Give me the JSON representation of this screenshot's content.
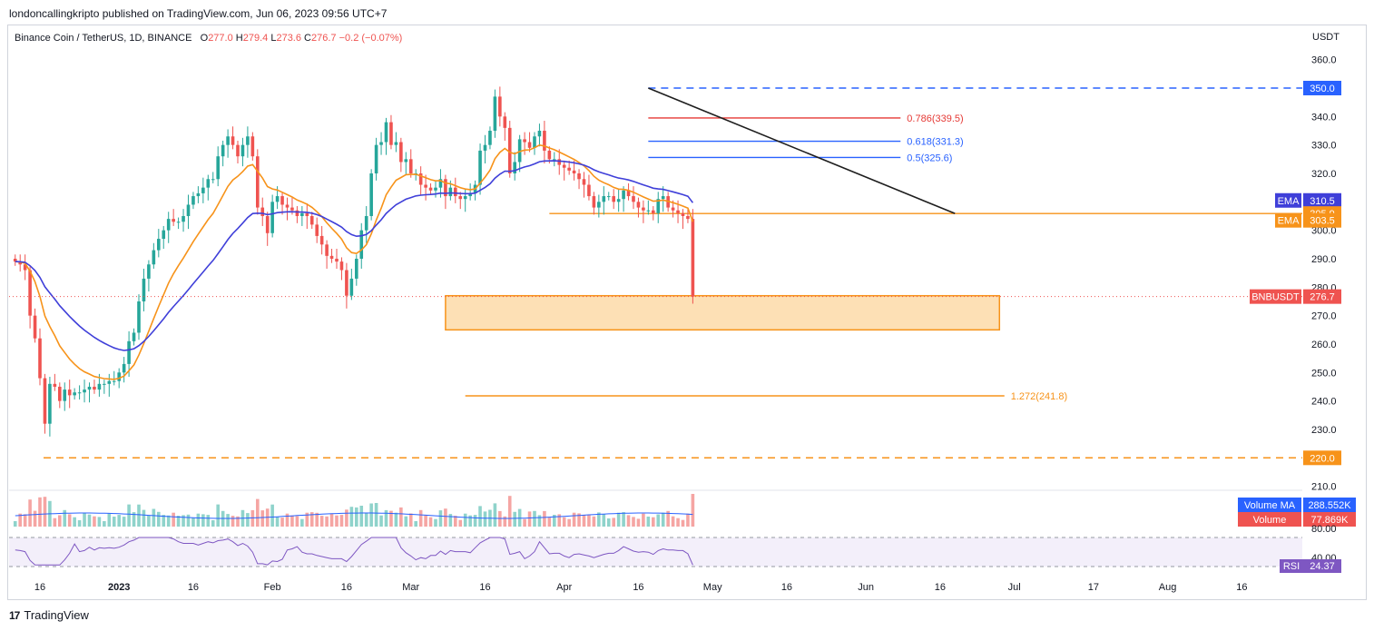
{
  "header": {
    "publisher": "londoncallingkripto published on TradingView.com, Jun 06, 2023 09:56 UTC+7"
  },
  "legend": {
    "symbol": "Binance Coin / TetherUS, 1D, BINANCE",
    "o_label": "O",
    "o_value": "277.0",
    "h_label": "H",
    "h_value": "279.4",
    "l_label": "L",
    "l_value": "273.6",
    "c_label": "C",
    "c_value": "276.7",
    "change": "−0.2 (−0.07%)"
  },
  "axis": {
    "currency": "USDT"
  },
  "footer": {
    "brand": "TradingView",
    "logo": "17"
  },
  "colors": {
    "up": "#26a69a",
    "down": "#ef5350",
    "ema_fast": "#f7931a",
    "ema_slow": "#3f3fd9",
    "trendline": "#1e1e1e",
    "zone_fill": "#fde0b5",
    "zone_border": "#f7931a",
    "level_blue": "#2962ff",
    "level_red": "#e53935"
  },
  "chart_data": {
    "type": "candlestick",
    "title": "Binance Coin / TetherUS, 1D, BINANCE",
    "ylabel": "USDT",
    "ylim": [
      206,
      366
    ],
    "y_ticks": [
      "360.0",
      "350.0",
      "340.0",
      "330.0",
      "320.0",
      "310.0",
      "300.0",
      "290.0",
      "280.0",
      "270.0",
      "260.0",
      "250.0",
      "240.0",
      "230.0",
      "220.0",
      "210.0"
    ],
    "x_ticks": [
      {
        "label": "16",
        "date": "2022-12-16"
      },
      {
        "label": "2023",
        "date": "2023-01-01"
      },
      {
        "label": "16",
        "date": "2023-01-16"
      },
      {
        "label": "Feb",
        "date": "2023-02-01"
      },
      {
        "label": "16",
        "date": "2023-02-16"
      },
      {
        "label": "Mar",
        "date": "2023-03-01"
      },
      {
        "label": "16",
        "date": "2023-03-16"
      },
      {
        "label": "Apr",
        "date": "2023-04-01"
      },
      {
        "label": "16",
        "date": "2023-04-16"
      },
      {
        "label": "May",
        "date": "2023-05-01"
      },
      {
        "label": "16",
        "date": "2023-05-16"
      },
      {
        "label": "Jun",
        "date": "2023-06-01"
      },
      {
        "label": "16",
        "date": "2023-06-16"
      },
      {
        "label": "Jul",
        "date": "2023-07-01"
      },
      {
        "label": "17",
        "date": "2023-07-17"
      },
      {
        "label": "Aug",
        "date": "2023-08-01"
      },
      {
        "label": "16",
        "date": "2023-08-16"
      }
    ],
    "x_start": "2022-12-11",
    "closes": [
      289,
      288,
      286,
      270,
      262,
      248,
      232,
      246,
      245,
      240,
      244,
      242,
      243,
      243,
      244,
      245,
      244,
      246,
      246,
      247,
      247,
      250,
      253,
      261,
      264,
      275,
      283,
      288,
      293,
      297,
      300,
      304,
      303,
      303,
      305,
      309,
      312,
      313,
      315,
      318,
      318,
      326,
      330,
      333,
      330,
      326,
      330,
      333,
      326,
      308,
      305,
      299,
      310,
      312,
      309,
      308,
      307,
      305,
      306,
      305,
      302,
      298,
      295,
      291,
      290,
      289,
      286,
      277,
      283,
      290,
      300,
      305,
      320,
      330,
      331,
      338,
      330,
      331,
      324,
      325,
      320,
      320,
      316,
      315,
      314,
      315,
      318,
      312,
      315,
      312,
      311,
      312,
      313,
      316,
      328,
      330,
      335,
      347,
      340,
      336,
      320,
      324,
      332,
      331,
      329,
      333,
      335,
      328,
      325,
      325,
      323,
      322,
      321,
      320,
      318,
      316,
      312,
      308,
      310,
      312,
      312,
      310,
      311,
      314,
      312,
      310,
      308,
      307,
      307,
      306,
      311,
      312,
      308,
      307,
      306,
      305,
      304,
      276.7
    ],
    "ema": [
      {
        "name": "EMA",
        "period": "fast",
        "value": "303.5"
      },
      {
        "name": "EMA",
        "period": "slow",
        "value": "310.5"
      }
    ],
    "last_price_label": "BNBUSDT",
    "last_price": "276.7",
    "price_tags": [
      "350.0",
      "305.9",
      "220.0"
    ],
    "fib_levels": [
      {
        "label": "0.786(339.5)",
        "price": 339.5
      },
      {
        "label": "0.618(331.3)",
        "price": 331.3
      },
      {
        "label": "0.5(325.6)",
        "price": 325.6
      },
      {
        "label": "1.272(241.8)",
        "price": 241.8
      }
    ],
    "resistance_dashed": 350.0,
    "support_dashed": 220.0,
    "horizontal_level": 305.9,
    "demand_zone": {
      "top": 277,
      "bottom": 265,
      "from": "2023-03-08",
      "to": "2023-06-28"
    },
    "trendline": {
      "from_date": "2023-04-18",
      "from_price": 350,
      "to_date": "2023-06-19",
      "to_price": 305.9
    },
    "volume": {
      "ma_label": "Volume MA",
      "ma_value": "288.552K",
      "label": "Volume",
      "value": "77.869K"
    },
    "rsi": {
      "label": "RSI",
      "value": "24.37",
      "ticks": [
        "80.00",
        "40.00"
      ]
    }
  }
}
